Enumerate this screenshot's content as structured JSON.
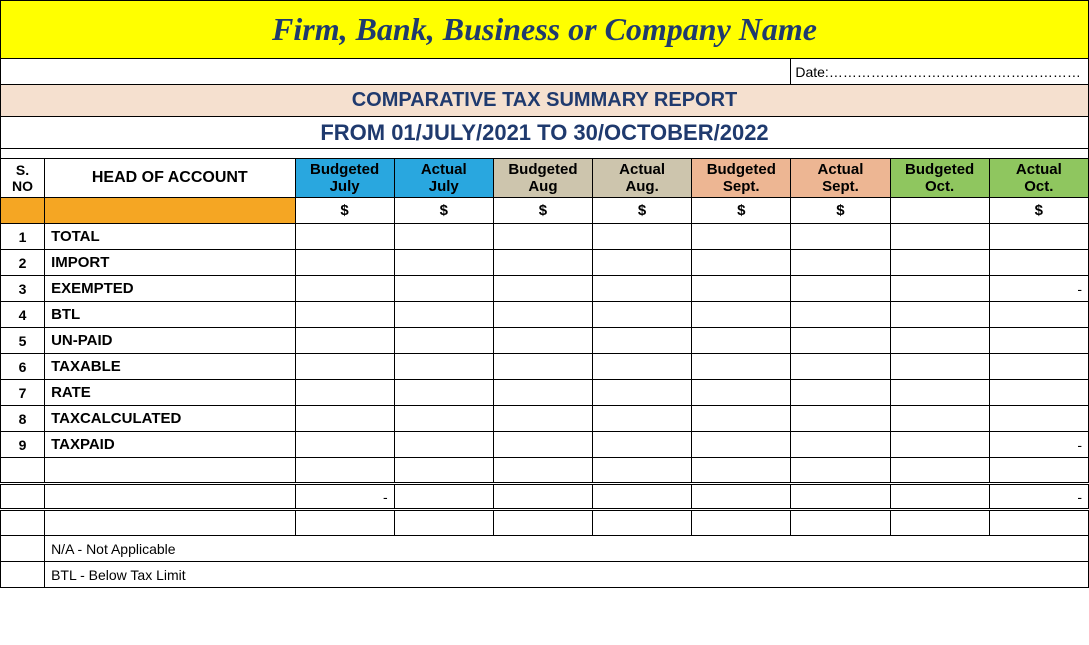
{
  "title": "Firm, Bank, Business or Company  Name",
  "date_label": "Date:………………………………………………",
  "report_title": "COMPARATIVE TAX  SUMMARY REPORT",
  "date_range": "FROM 01/JULY/2021  TO 30/OCTOBER/2022",
  "columns": {
    "sno": "S. NO",
    "hoa": "HEAD OF ACCOUNT",
    "months": [
      {
        "line1": "Budgeted",
        "line2": "July",
        "bg": "#29a7df"
      },
      {
        "line1": "Actual",
        "line2": "July",
        "bg": "#29a7df"
      },
      {
        "line1": "Budgeted",
        "line2": "Aug",
        "bg": "#cdc5ad"
      },
      {
        "line1": "Actual",
        "line2": "Aug.",
        "bg": "#cdc5ad"
      },
      {
        "line1": "Budgeted",
        "line2": "Sept.",
        "bg": "#edb693"
      },
      {
        "line1": "Actual",
        "line2": "Sept.",
        "bg": "#edb693"
      },
      {
        "line1": "Budgeted",
        "line2": "Oct.",
        "bg": "#8fc65f"
      },
      {
        "line1": "Actual",
        "line2": "Oct.",
        "bg": "#8fc65f"
      }
    ]
  },
  "currency": [
    "$",
    "$",
    "$",
    "$",
    "$",
    "$",
    "",
    "$"
  ],
  "rows": [
    {
      "sno": "1",
      "label": " TOTAL",
      "cells": [
        "",
        "",
        "",
        "",
        "",
        "",
        "",
        ""
      ]
    },
    {
      "sno": "2",
      "label": "IMPORT",
      "cells": [
        "",
        "",
        "",
        "",
        "",
        "",
        "",
        ""
      ]
    },
    {
      "sno": "3",
      "label": "EXEMPTED",
      "cells": [
        "",
        "",
        "",
        "",
        "",
        "",
        "",
        "-"
      ]
    },
    {
      "sno": "4",
      "label": "BTL",
      "cells": [
        "",
        "",
        "",
        "",
        "",
        "",
        "",
        ""
      ]
    },
    {
      "sno": "5",
      "label": "UN-PAID",
      "cells": [
        "",
        "",
        "",
        "",
        "",
        "",
        "",
        ""
      ]
    },
    {
      "sno": "6",
      "label": "TAXABLE",
      "cells": [
        "",
        "",
        "",
        "",
        "",
        "",
        "",
        ""
      ]
    },
    {
      "sno": "7",
      "label": "RATE",
      "cells": [
        "",
        "",
        "",
        "",
        "",
        "",
        "",
        ""
      ]
    },
    {
      "sno": "8",
      "label": "TAXCALCULATED",
      "cells": [
        "",
        "",
        "",
        "",
        "",
        "",
        "",
        ""
      ]
    },
    {
      "sno": "9",
      "label": "TAXPAID",
      "cells": [
        "",
        "",
        "",
        "",
        "",
        "",
        "",
        "-"
      ]
    }
  ],
  "totals_row": [
    "",
    "",
    "-",
    "",
    "",
    "",
    "",
    "",
    "",
    "-"
  ],
  "legends": [
    "N/A - Not Applicable",
    "BTL - Below Tax Limit"
  ],
  "colors": {
    "title_bg": "#ffff00",
    "title_fg": "#1f3a6e",
    "header_bg": "#f5e0cf",
    "orange": "#f5a623",
    "border": "#000000"
  }
}
